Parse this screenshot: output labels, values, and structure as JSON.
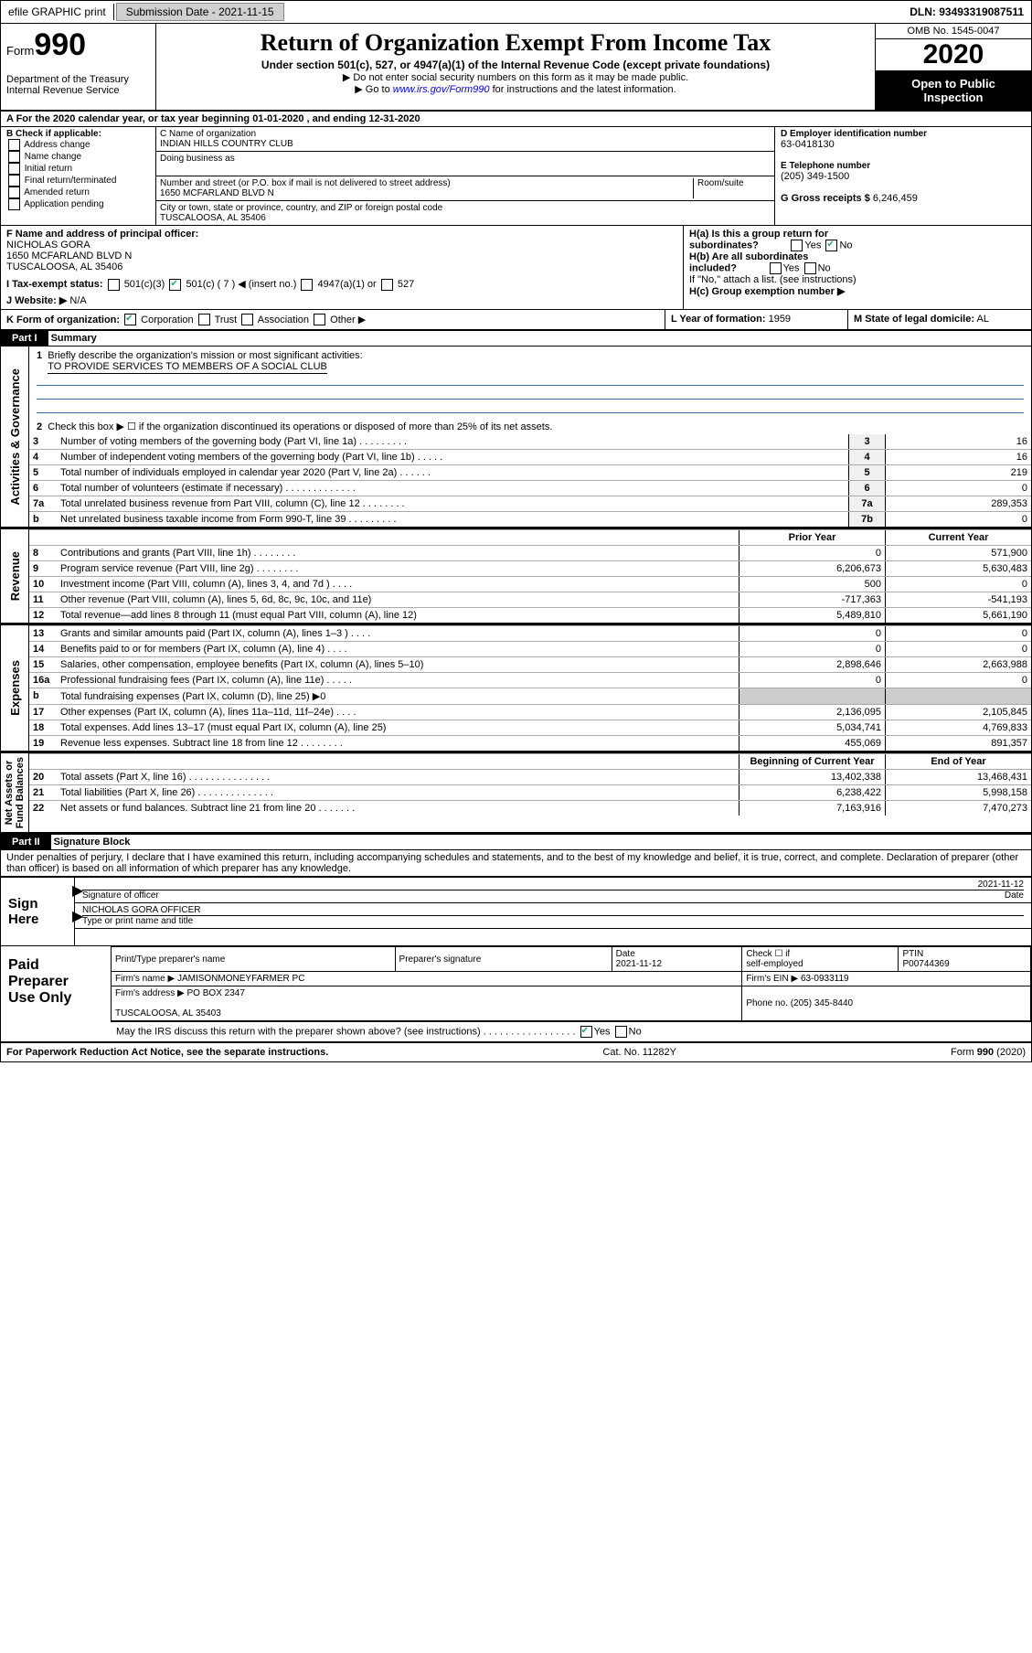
{
  "top": {
    "efile": "efile GRAPHIC print",
    "subdate_lbl": "Submission Date - 2021-11-15",
    "dln": "DLN: 93493319087511"
  },
  "hdr": {
    "form": "Form",
    "num": "990",
    "dept": "Department of the Treasury\nInternal Revenue Service",
    "title": "Return of Organization Exempt From Income Tax",
    "sub": "Under section 501(c), 527, or 4947(a)(1) of the Internal Revenue Code (except private foundations)",
    "l1": "▶ Do not enter social security numbers on this form as it may be made public.",
    "l2": "▶ Go to www.irs.gov/Form990 for instructions and the latest information.",
    "omb": "OMB No. 1545-0047",
    "year": "2020",
    "inspect": "Open to Public\nInspection"
  },
  "A": "A For the 2020 calendar year, or tax year beginning 01-01-2020    , and ending 12-31-2020",
  "B": {
    "lbl": "B Check if applicable:",
    "opts": [
      "Address change",
      "Name change",
      "Initial return",
      "Final return/terminated",
      "Amended return",
      "Application pending"
    ]
  },
  "C": {
    "namelbl": "C Name of organization",
    "name": "INDIAN HILLS COUNTRY CLUB",
    "dba": "Doing business as",
    "addrlbl": "Number and street (or P.O. box if mail is not delivered to street address)",
    "room": "Room/suite",
    "addr": "1650 MCFARLAND BLVD N",
    "citylbl": "City or town, state or province, country, and ZIP or foreign postal code",
    "city": "TUSCALOOSA, AL  35406"
  },
  "D": {
    "lbl": "D Employer identification number",
    "val": "63-0418130"
  },
  "E": {
    "lbl": "E Telephone number",
    "val": "(205) 349-1500"
  },
  "G": {
    "lbl": "G Gross receipts $",
    "val": "6,246,459"
  },
  "F": {
    "lbl": "F  Name and address of principal officer:",
    "name": "NICHOLAS GORA",
    "addr": "1650 MCFARLAND BLVD N\nTUSCALOOSA, AL  35406"
  },
  "H": {
    "a": "H(a)  Is this a group return for\n          subordinates?",
    "b": "H(b)  Are all subordinates\n          included?",
    "note": "If \"No,\" attach a list. (see instructions)",
    "c": "H(c)  Group exemption number ▶"
  },
  "I": {
    "lbl": "I    Tax-exempt status:",
    "opts": [
      "501(c)(3)",
      "501(c) ( 7 ) ◀ (insert no.)",
      "4947(a)(1) or",
      "527"
    ]
  },
  "J": {
    "lbl": "J    Website: ▶",
    "val": "N/A"
  },
  "K": {
    "lbl": "K Form of organization:",
    "opts": [
      "Corporation",
      "Trust",
      "Association",
      "Other ▶"
    ]
  },
  "L": {
    "lbl": "L Year of formation:",
    "val": "1959"
  },
  "M": {
    "lbl": "M State of legal domicile:",
    "val": "AL"
  },
  "part1": {
    "hdr": "Part I",
    "title": "Summary",
    "l1": "Briefly describe the organization's mission or most significant activities:",
    "mission": "TO PROVIDE SERVICES TO MEMBERS OF A SOCIAL CLUB",
    "l2": "Check this box ▶ ☐  if the organization discontinued its operations or disposed of more than 25% of its net assets.",
    "lines": [
      {
        "n": "3",
        "t": "Number of voting members of the governing body (Part VI, line 1a)  .  .  .  .  .  .  .  .  .",
        "b": "3",
        "v": "16"
      },
      {
        "n": "4",
        "t": "Number of independent voting members of the governing body (Part VI, line 1b)  .  .  .  .  .",
        "b": "4",
        "v": "16"
      },
      {
        "n": "5",
        "t": "Total number of individuals employed in calendar year 2020 (Part V, line 2a)  .  .  .  .  .  .",
        "b": "5",
        "v": "219"
      },
      {
        "n": "6",
        "t": "Total number of volunteers (estimate if necessary)  .  .  .  .  .  .  .  .  .  .  .  .  .",
        "b": "6",
        "v": "0"
      },
      {
        "n": "7a",
        "t": "Total unrelated business revenue from Part VIII, column (C), line 12  .  .  .  .  .  .  .  .",
        "b": "7a",
        "v": "289,353"
      },
      {
        "n": "b",
        "t": "Net unrelated business taxable income from Form 990-T, line 39  .  .  .  .  .  .  .  .  .",
        "b": "7b",
        "v": "0"
      }
    ],
    "col_prior": "Prior Year",
    "col_current": "Current Year",
    "rev": [
      {
        "n": "8",
        "t": "Contributions and grants (Part VIII, line 1h)  .  .  .  .  .  .  .  .",
        "p": "0",
        "c": "571,900"
      },
      {
        "n": "9",
        "t": "Program service revenue (Part VIII, line 2g)  .  .  .  .  .  .  .  .",
        "p": "6,206,673",
        "c": "5,630,483"
      },
      {
        "n": "10",
        "t": "Investment income (Part VIII, column (A), lines 3, 4, and 7d )  .  .  .  .",
        "p": "500",
        "c": "0"
      },
      {
        "n": "11",
        "t": "Other revenue (Part VIII, column (A), lines 5, 6d, 8c, 9c, 10c, and 11e)",
        "p": "-717,363",
        "c": "-541,193"
      },
      {
        "n": "12",
        "t": "Total revenue—add lines 8 through 11 (must equal Part VIII, column (A), line 12)",
        "p": "5,489,810",
        "c": "5,661,190"
      }
    ],
    "exp": [
      {
        "n": "13",
        "t": "Grants and similar amounts paid (Part IX, column (A), lines 1–3 )  .  .  .  .",
        "p": "0",
        "c": "0"
      },
      {
        "n": "14",
        "t": "Benefits paid to or for members (Part IX, column (A), line 4)  .  .  .  .",
        "p": "0",
        "c": "0"
      },
      {
        "n": "15",
        "t": "Salaries, other compensation, employee benefits (Part IX, column (A), lines 5–10)",
        "p": "2,898,646",
        "c": "2,663,988"
      },
      {
        "n": "16a",
        "t": "Professional fundraising fees (Part IX, column (A), line 11e)  .  .  .  .  .",
        "p": "0",
        "c": "0"
      },
      {
        "n": "b",
        "t": "Total fundraising expenses (Part IX, column (D), line 25) ▶0",
        "p": "",
        "c": "",
        "grey": true
      },
      {
        "n": "17",
        "t": "Other expenses (Part IX, column (A), lines 11a–11d, 11f–24e)  .  .  .  .",
        "p": "2,136,095",
        "c": "2,105,845"
      },
      {
        "n": "18",
        "t": "Total expenses. Add lines 13–17 (must equal Part IX, column (A), line 25)",
        "p": "5,034,741",
        "c": "4,769,833"
      },
      {
        "n": "19",
        "t": "Revenue less expenses. Subtract line 18 from line 12  .  .  .  .  .  .  .  .",
        "p": "455,069",
        "c": "891,357"
      }
    ],
    "col_beg": "Beginning of Current Year",
    "col_end": "End of Year",
    "net": [
      {
        "n": "20",
        "t": "Total assets (Part X, line 16)  .  .  .  .  .  .  .  .  .  .  .  .  .  .  .",
        "p": "13,402,338",
        "c": "13,468,431"
      },
      {
        "n": "21",
        "t": "Total liabilities (Part X, line 26)  .  .  .  .  .  .  .  .  .  .  .  .  .  .",
        "p": "6,238,422",
        "c": "5,998,158"
      },
      {
        "n": "22",
        "t": "Net assets or fund balances. Subtract line 21 from line 20  .  .  .  .  .  .  .",
        "p": "7,163,916",
        "c": "7,470,273"
      }
    ],
    "side": {
      "gov": "Activities & Governance",
      "rev": "Revenue",
      "exp": "Expenses",
      "net": "Net Assets or\nFund Balances"
    }
  },
  "part2": {
    "hdr": "Part II",
    "title": "Signature Block",
    "decl": "Under penalties of perjury, I declare that I have examined this return, including accompanying schedules and statements, and to the best of my knowledge and belief, it is true, correct, and complete. Declaration of preparer (other than officer) is based on all information of which preparer has any knowledge."
  },
  "sign": {
    "lbl": "Sign\nHere",
    "sig": "Signature of officer",
    "date": "2021-11-12",
    "datel": "Date",
    "name": "NICHOLAS GORA  OFFICER",
    "namel": "Type or print name and title"
  },
  "prep": {
    "lbl": "Paid\nPreparer\nUse Only",
    "h": [
      "Print/Type preparer's name",
      "Preparer's signature",
      "Date",
      "Check ☐ if\nself-employed",
      "PTIN"
    ],
    "date": "2021-11-12",
    "ptin": "P00744369",
    "firmn_l": "Firm's name     ▶",
    "firmn": "JAMISONMONEYFARMER PC",
    "ein_l": "Firm's EIN ▶",
    "ein": "63-0933119",
    "addr_l": "Firm's address ▶",
    "addr": "PO BOX 2347\n\nTUSCALOOSA, AL  35403",
    "ph_l": "Phone no.",
    "ph": "(205) 345-8440",
    "irs": "May the IRS discuss this return with the preparer shown above? (see instructions)  .  .  .  .  .  .  .  .  .  .  .  .  .  .  .  .  ."
  },
  "foot": {
    "l": "For Paperwork Reduction Act Notice, see the separate instructions.",
    "c": "Cat. No. 11282Y",
    "r": "Form 990 (2020)"
  }
}
